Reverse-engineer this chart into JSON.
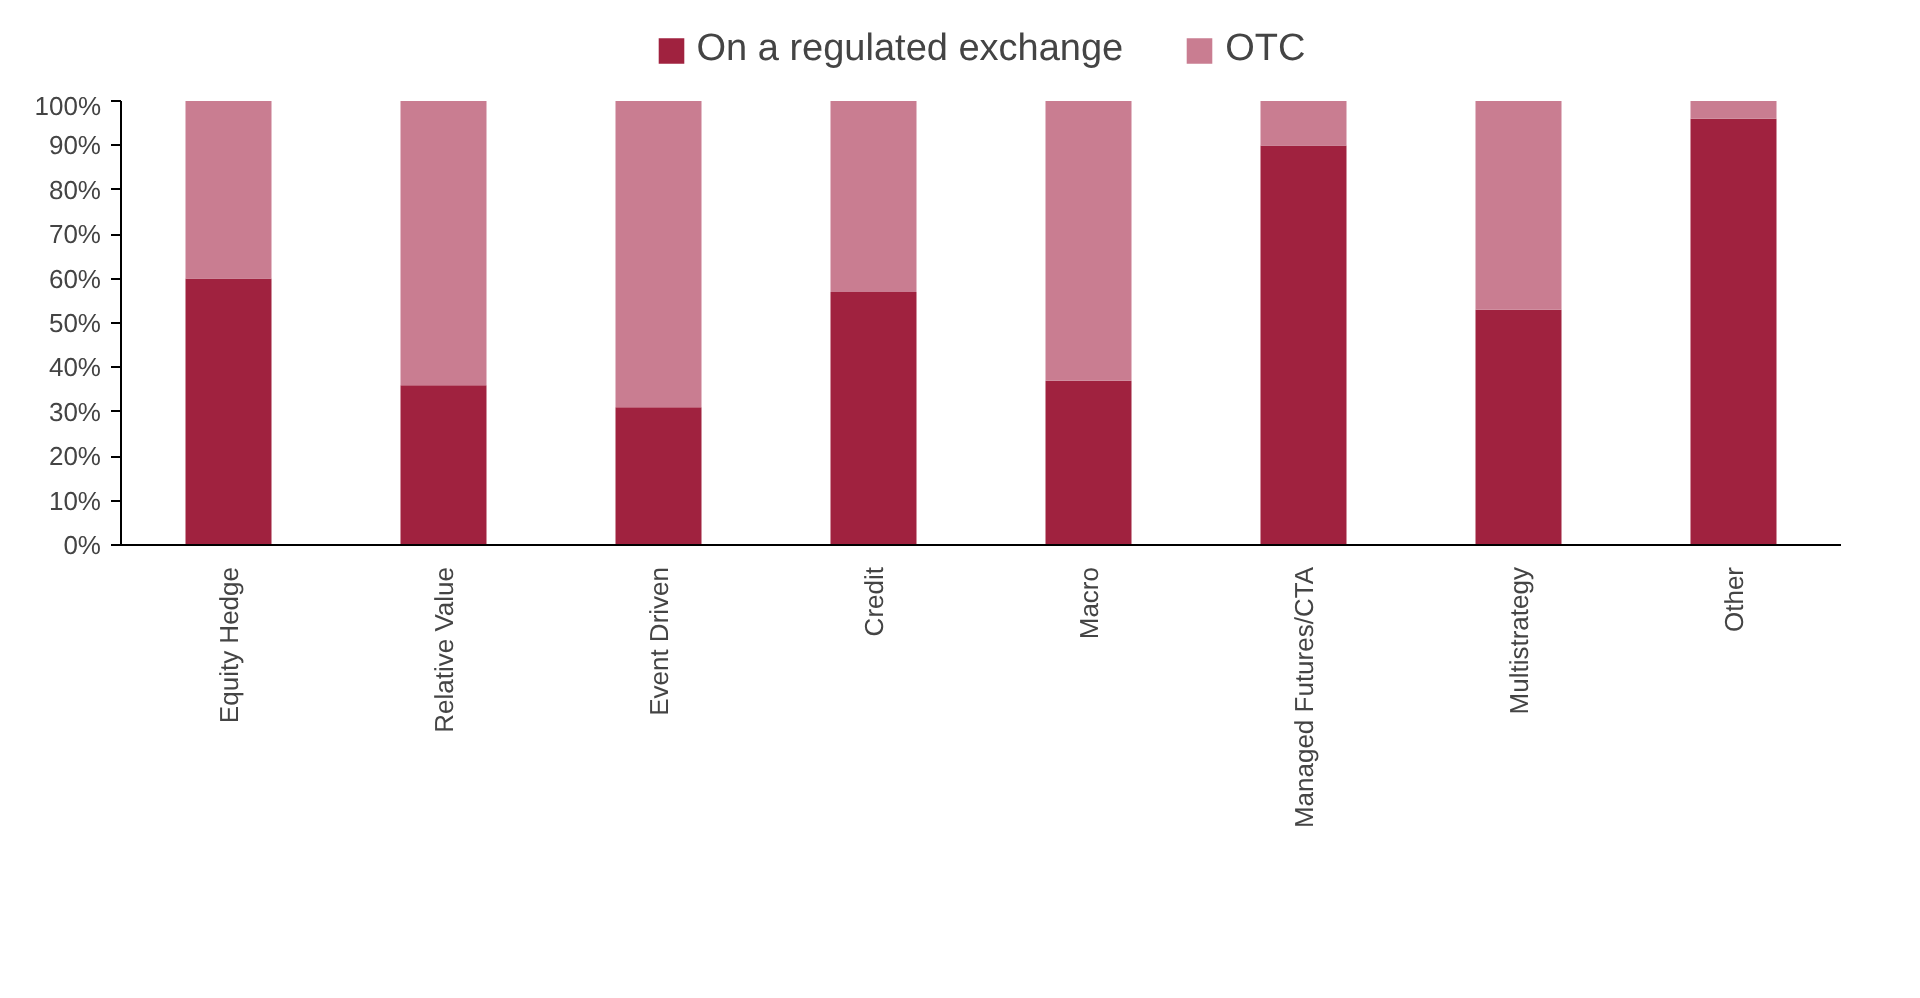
{
  "chart_data": {
    "type": "bar",
    "stacked": true,
    "legend": "top",
    "grid": false,
    "categories": [
      "Equity Hedge",
      "Relative Value",
      "Event Driven",
      "Credit",
      "Macro",
      "Managed Futures/CTA",
      "Multistrategy",
      "Other"
    ],
    "series": [
      {
        "name": "On a regulated exchange",
        "color": "#a0223f",
        "values": [
          60,
          36,
          31,
          57,
          37,
          90,
          53,
          96
        ]
      },
      {
        "name": "OTC",
        "color": "#c97d91",
        "values": [
          40,
          64,
          69,
          43,
          63,
          10,
          47,
          4
        ]
      }
    ],
    "ylim": [
      0,
      100
    ],
    "yticks": [
      {
        "value": 0,
        "label": "0%"
      },
      {
        "value": 10,
        "label": "10%"
      },
      {
        "value": 20,
        "label": "20%"
      },
      {
        "value": 30,
        "label": "30%"
      },
      {
        "value": 40,
        "label": "40%"
      },
      {
        "value": 50,
        "label": "50%"
      },
      {
        "value": 60,
        "label": "60%"
      },
      {
        "value": 70,
        "label": "70%"
      },
      {
        "value": 80,
        "label": "80%"
      },
      {
        "value": 90,
        "label": "90%"
      },
      {
        "value": 100,
        "label": "100%"
      }
    ]
  }
}
